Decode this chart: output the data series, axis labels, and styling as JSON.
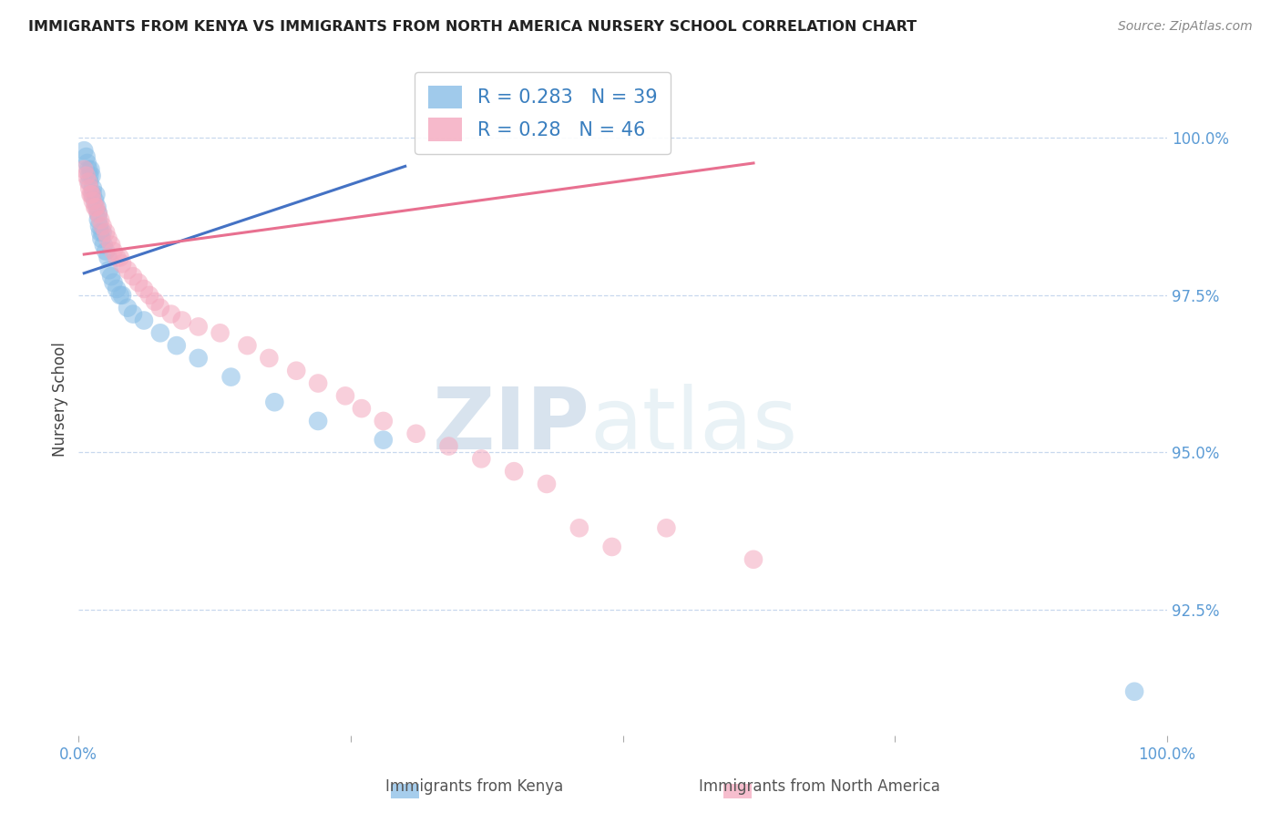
{
  "title": "IMMIGRANTS FROM KENYA VS IMMIGRANTS FROM NORTH AMERICA NURSERY SCHOOL CORRELATION CHART",
  "source": "Source: ZipAtlas.com",
  "ylabel": "Nursery School",
  "y_ticks": [
    92.5,
    95.0,
    97.5,
    100.0
  ],
  "y_tick_labels": [
    "92.5%",
    "95.0%",
    "97.5%",
    "100.0%"
  ],
  "xlim": [
    0.0,
    1.0
  ],
  "ylim": [
    90.5,
    101.2
  ],
  "kenya_R": 0.283,
  "kenya_N": 39,
  "northam_R": 0.28,
  "northam_N": 46,
  "kenya_color": "#88bde6",
  "northam_color": "#f4a8be",
  "kenya_line_color": "#4472c4",
  "northam_line_color": "#e87090",
  "legend_label_kenya": "Immigrants from Kenya",
  "legend_label_northam": "Immigrants from North America",
  "watermark_zip": "ZIP",
  "watermark_atlas": "atlas",
  "kenya_x": [
    0.005,
    0.007,
    0.008,
    0.009,
    0.01,
    0.01,
    0.011,
    0.012,
    0.013,
    0.013,
    0.015,
    0.016,
    0.017,
    0.018,
    0.018,
    0.019,
    0.02,
    0.021,
    0.022,
    0.023,
    0.025,
    0.027,
    0.028,
    0.03,
    0.032,
    0.035,
    0.038,
    0.04,
    0.045,
    0.05,
    0.06,
    0.075,
    0.09,
    0.11,
    0.14,
    0.18,
    0.22,
    0.28,
    0.97
  ],
  "kenya_y": [
    99.8,
    99.7,
    99.6,
    99.5,
    99.4,
    99.3,
    99.5,
    99.4,
    99.2,
    99.1,
    99.0,
    99.1,
    98.9,
    98.8,
    98.7,
    98.6,
    98.5,
    98.4,
    98.5,
    98.3,
    98.2,
    98.1,
    97.9,
    97.8,
    97.7,
    97.6,
    97.5,
    97.5,
    97.3,
    97.2,
    97.1,
    96.9,
    96.7,
    96.5,
    96.2,
    95.8,
    95.5,
    95.2,
    91.2
  ],
  "northam_x": [
    0.005,
    0.007,
    0.009,
    0.01,
    0.011,
    0.012,
    0.013,
    0.015,
    0.016,
    0.018,
    0.02,
    0.022,
    0.025,
    0.027,
    0.03,
    0.032,
    0.035,
    0.038,
    0.04,
    0.045,
    0.05,
    0.055,
    0.06,
    0.065,
    0.07,
    0.075,
    0.085,
    0.095,
    0.11,
    0.13,
    0.155,
    0.175,
    0.2,
    0.22,
    0.245,
    0.26,
    0.28,
    0.31,
    0.34,
    0.37,
    0.4,
    0.43,
    0.46,
    0.49,
    0.54,
    0.62
  ],
  "northam_y": [
    99.5,
    99.4,
    99.3,
    99.2,
    99.1,
    99.1,
    99.0,
    98.9,
    98.9,
    98.8,
    98.7,
    98.6,
    98.5,
    98.4,
    98.3,
    98.2,
    98.1,
    98.1,
    98.0,
    97.9,
    97.8,
    97.7,
    97.6,
    97.5,
    97.4,
    97.3,
    97.2,
    97.1,
    97.0,
    96.9,
    96.7,
    96.5,
    96.3,
    96.1,
    95.9,
    95.7,
    95.5,
    95.3,
    95.1,
    94.9,
    94.7,
    94.5,
    93.8,
    93.5,
    93.8,
    93.3
  ]
}
